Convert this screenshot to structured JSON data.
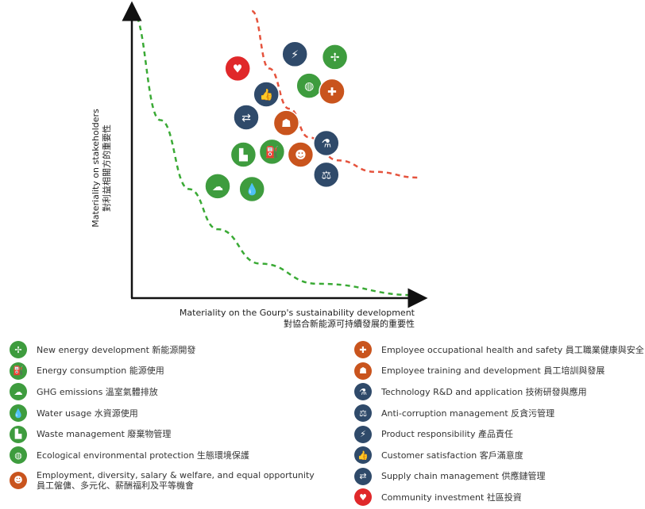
{
  "chart_data": {
    "type": "scatter",
    "xlabel": "Materiality on the Gourp's sustainability development",
    "xlabel_zh": "對協合新能源可持續發展的重要性",
    "ylabel": "Materiality on stakeholders",
    "ylabel_zh": "對利益相關方的重要性",
    "xlim": [
      0,
      100
    ],
    "ylim": [
      0,
      100
    ],
    "grid": false,
    "points": [
      {
        "topic": "Community investment",
        "icon": "heart-hands-icon",
        "color": "#e0282a",
        "x": 37,
        "y": 80
      },
      {
        "topic": "Product responsibility",
        "icon": "power-tower-icon",
        "color": "#2f4a6a",
        "x": 57,
        "y": 85
      },
      {
        "topic": "New energy development",
        "icon": "wind-turbine-icon",
        "color": "#3e9c3e",
        "x": 71,
        "y": 84
      },
      {
        "topic": "Ecological environmental protection",
        "icon": "globe-icon",
        "color": "#3e9c3e",
        "x": 62,
        "y": 74
      },
      {
        "topic": "Employee occupational health and safety",
        "icon": "health-safety-icon",
        "color": "#c9541d",
        "x": 70,
        "y": 72
      },
      {
        "topic": "Customer satisfaction",
        "icon": "thumbs-up-icon",
        "color": "#2f4a6a",
        "x": 47,
        "y": 71
      },
      {
        "topic": "Supply chain management",
        "icon": "handshake-icon",
        "color": "#2f4a6a",
        "x": 40,
        "y": 63
      },
      {
        "topic": "Employee training and development",
        "icon": "training-icon",
        "color": "#c9541d",
        "x": 54,
        "y": 61
      },
      {
        "topic": "Technology R&D and application",
        "icon": "microscope-icon",
        "color": "#2f4a6a",
        "x": 68,
        "y": 54
      },
      {
        "topic": "Waste management",
        "icon": "factory-icon",
        "color": "#3e9c3e",
        "x": 39,
        "y": 50
      },
      {
        "topic": "Energy consumption",
        "icon": "fuel-pump-icon",
        "color": "#3e9c3e",
        "x": 49,
        "y": 51
      },
      {
        "topic": "Employment, diversity, salary & welfare, and equal opportunity",
        "icon": "people-icon",
        "color": "#c9541d",
        "x": 59,
        "y": 50
      },
      {
        "topic": "Anti-corruption management",
        "icon": "scales-icon",
        "color": "#2f4a6a",
        "x": 68,
        "y": 43
      },
      {
        "topic": "GHG emissions",
        "icon": "co2-cloud-icon",
        "color": "#3e9c3e",
        "x": 30,
        "y": 39
      },
      {
        "topic": "Water usage",
        "icon": "water-drop-icon",
        "color": "#3e9c3e",
        "x": 42,
        "y": 38
      }
    ],
    "threshold_curves": [
      {
        "color": "#3aaa35",
        "style": "dashed",
        "x": [
          0,
          10,
          20,
          30,
          45,
          65,
          100
        ],
        "y": [
          100,
          62,
          38,
          24,
          12,
          5,
          1
        ]
      },
      {
        "color": "#e5533d",
        "style": "dashed",
        "x": [
          42,
          48,
          55,
          62,
          72,
          85,
          100
        ],
        "y": [
          100,
          80,
          66,
          56,
          48,
          44,
          42
        ]
      }
    ]
  },
  "legend": {
    "left": [
      {
        "label": "New energy development 新能源開發",
        "icon": "wind-turbine-icon",
        "color": "#3e9c3e",
        "glyph": "✢"
      },
      {
        "label": "Energy consumption 能源使用",
        "icon": "fuel-pump-icon",
        "color": "#3e9c3e",
        "glyph": "⛽"
      },
      {
        "label": "GHG emissions 溫室氣體排放",
        "icon": "co2-cloud-icon",
        "color": "#3e9c3e",
        "glyph": "☁"
      },
      {
        "label": "Water usage 水資源使用",
        "icon": "water-drop-icon",
        "color": "#3e9c3e",
        "glyph": "💧"
      },
      {
        "label": "Waste management 廢棄物管理",
        "icon": "factory-icon",
        "color": "#3e9c3e",
        "glyph": "▙"
      },
      {
        "label": "Ecological environmental protection 生態環境保護",
        "icon": "globe-icon",
        "color": "#3e9c3e",
        "glyph": "◍"
      },
      {
        "label": "Employment, diversity, salary & welfare, and equal opportunity",
        "label2": "員工僱傭、多元化、薪酬福利及平等機會",
        "icon": "people-icon",
        "color": "#c9541d",
        "glyph": "☻"
      }
    ],
    "right": [
      {
        "label": "Employee occupational health and safety 員工職業健康與安全",
        "icon": "health-safety-icon",
        "color": "#c9541d",
        "glyph": "✚"
      },
      {
        "label": "Employee training and development 員工培訓與發展",
        "icon": "training-icon",
        "color": "#c9541d",
        "glyph": "☗"
      },
      {
        "label": "Technology R&D and application 技術研發與應用",
        "icon": "microscope-icon",
        "color": "#2f4a6a",
        "glyph": "⚗"
      },
      {
        "label": "Anti-corruption management 反貪污管理",
        "icon": "scales-icon",
        "color": "#2f4a6a",
        "glyph": "⚖"
      },
      {
        "label": "Product responsibility 產品責任",
        "icon": "power-tower-icon",
        "color": "#2f4a6a",
        "glyph": "⚡"
      },
      {
        "label": "Customer satisfaction 客戶滿意度",
        "icon": "thumbs-up-icon",
        "color": "#2f4a6a",
        "glyph": "👍"
      },
      {
        "label": "Supply chain management 供應鏈管理",
        "icon": "handshake-icon",
        "color": "#2f4a6a",
        "glyph": "⇄"
      },
      {
        "label": "Community investment 社區投資",
        "icon": "heart-hands-icon",
        "color": "#e0282a",
        "glyph": "♥"
      }
    ]
  }
}
